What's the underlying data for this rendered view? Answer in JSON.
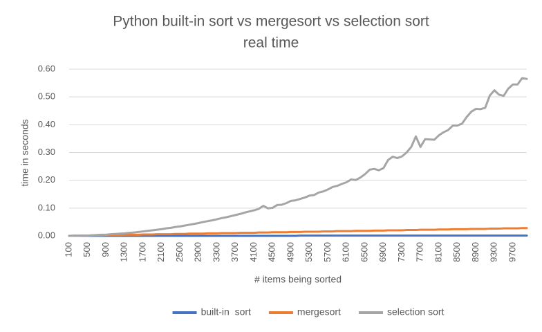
{
  "chart_data": {
    "type": "line",
    "title": "Python built-in sort vs mergesort vs selection sort",
    "subtitle": "real time",
    "x_label": "# items being sorted",
    "y_label": "time in seconds",
    "categories": [
      100,
      null,
      null,
      null,
      500,
      null,
      null,
      null,
      900,
      null,
      null,
      null,
      1300,
      null,
      null,
      null,
      1700,
      null,
      null,
      null,
      2100,
      null,
      null,
      null,
      2500,
      null,
      null,
      null,
      2900,
      null,
      null,
      null,
      3300,
      null,
      null,
      null,
      3700,
      null,
      null,
      null,
      4100,
      null,
      null,
      null,
      4500,
      null,
      null,
      null,
      4900,
      null,
      null,
      null,
      5300,
      null,
      null,
      null,
      5700,
      null,
      null,
      null,
      6100,
      null,
      null,
      null,
      6500,
      null,
      null,
      null,
      6900,
      null,
      null,
      null,
      7300,
      null,
      null,
      null,
      7700,
      null,
      null,
      null,
      8100,
      null,
      null,
      null,
      8500,
      null,
      null,
      null,
      8900,
      null,
      null,
      null,
      9300,
      null,
      null,
      null,
      9700,
      null,
      null,
      null
    ],
    "series": [
      {
        "name": "built-in  sort",
        "color": "#4472c4",
        "values": [
          0,
          0,
          0,
          0,
          0,
          0,
          0,
          0,
          0,
          0,
          0,
          0,
          0,
          0,
          0,
          0,
          0,
          0,
          0,
          0,
          0,
          0,
          0,
          0,
          0,
          0,
          0,
          0,
          0,
          0,
          0,
          0,
          0,
          0,
          0,
          0,
          0,
          0,
          0,
          0,
          0,
          0,
          0,
          0,
          0,
          0,
          0,
          0,
          0,
          0,
          0.001,
          0.001,
          0.001,
          0.001,
          0.001,
          0.001,
          0.001,
          0.001,
          0.001,
          0.001,
          0.001,
          0.001,
          0.001,
          0.001,
          0.001,
          0.001,
          0.001,
          0.001,
          0.001,
          0.001,
          0.001,
          0.001,
          0.001,
          0.001,
          0.001,
          0.001,
          0.001,
          0.001,
          0.001,
          0.001,
          0.001,
          0.001,
          0.001,
          0.001,
          0.001,
          0.001,
          0.001,
          0.001,
          0.001,
          0.001,
          0.001,
          0.001,
          0.001,
          0.001,
          0.001,
          0.001,
          0.001,
          0.001,
          0.001,
          0.001
        ]
      },
      {
        "name": "mergesort",
        "color": "#ed7d31",
        "values": [
          0,
          0.001,
          0.001,
          0.001,
          0.001,
          0.002,
          0.002,
          0.002,
          0.003,
          0.003,
          0.003,
          0.003,
          0.004,
          0.004,
          0.004,
          0.004,
          0.005,
          0.005,
          0.005,
          0.006,
          0.006,
          0.006,
          0.006,
          0.007,
          0.007,
          0.007,
          0.008,
          0.008,
          0.008,
          0.008,
          0.009,
          0.009,
          0.009,
          0.01,
          0.01,
          0.01,
          0.01,
          0.011,
          0.011,
          0.011,
          0.011,
          0.012,
          0.012,
          0.012,
          0.013,
          0.013,
          0.013,
          0.013,
          0.014,
          0.014,
          0.014,
          0.015,
          0.015,
          0.015,
          0.015,
          0.016,
          0.016,
          0.016,
          0.017,
          0.017,
          0.017,
          0.017,
          0.018,
          0.018,
          0.018,
          0.018,
          0.019,
          0.019,
          0.019,
          0.02,
          0.02,
          0.02,
          0.02,
          0.021,
          0.021,
          0.021,
          0.022,
          0.022,
          0.022,
          0.022,
          0.023,
          0.023,
          0.023,
          0.024,
          0.024,
          0.024,
          0.024,
          0.025,
          0.025,
          0.025,
          0.025,
          0.026,
          0.026,
          0.026,
          0.027,
          0.027,
          0.027,
          0.027,
          0.028,
          0.028
        ]
      },
      {
        "name": "selection sort",
        "color": "#a5a5a5",
        "values": [
          0,
          0,
          0,
          0.001,
          0.001,
          0.002,
          0.003,
          0.004,
          0.004,
          0.006,
          0.007,
          0.008,
          0.009,
          0.011,
          0.012,
          0.014,
          0.016,
          0.018,
          0.02,
          0.022,
          0.024,
          0.027,
          0.029,
          0.032,
          0.034,
          0.037,
          0.04,
          0.043,
          0.046,
          0.05,
          0.053,
          0.056,
          0.06,
          0.064,
          0.067,
          0.071,
          0.075,
          0.079,
          0.084,
          0.088,
          0.092,
          0.097,
          0.108,
          0.099,
          0.101,
          0.111,
          0.112,
          0.118,
          0.126,
          0.128,
          0.133,
          0.138,
          0.145,
          0.147,
          0.156,
          0.16,
          0.167,
          0.176,
          0.18,
          0.187,
          0.193,
          0.203,
          0.201,
          0.21,
          0.222,
          0.238,
          0.241,
          0.236,
          0.244,
          0.273,
          0.285,
          0.28,
          0.286,
          0.3,
          0.32,
          0.358,
          0.32,
          0.348,
          0.347,
          0.346,
          0.362,
          0.373,
          0.381,
          0.397,
          0.397,
          0.404,
          0.428,
          0.447,
          0.457,
          0.456,
          0.461,
          0.505,
          0.524,
          0.508,
          0.504,
          0.53,
          0.545,
          0.545,
          0.568,
          0.565
        ]
      }
    ],
    "ylim": [
      0,
      0.6
    ],
    "yticks": [
      {
        "value": 0,
        "label": "0.00"
      },
      {
        "value": 0.1,
        "label": "0.10"
      },
      {
        "value": 0.2,
        "label": "0.20"
      },
      {
        "value": 0.3,
        "label": "0.30"
      },
      {
        "value": 0.4,
        "label": "0.40"
      },
      {
        "value": 0.5,
        "label": "0.50"
      },
      {
        "value": 0.6,
        "label": "0.60"
      }
    ],
    "grid": true,
    "legend": "bottom"
  }
}
